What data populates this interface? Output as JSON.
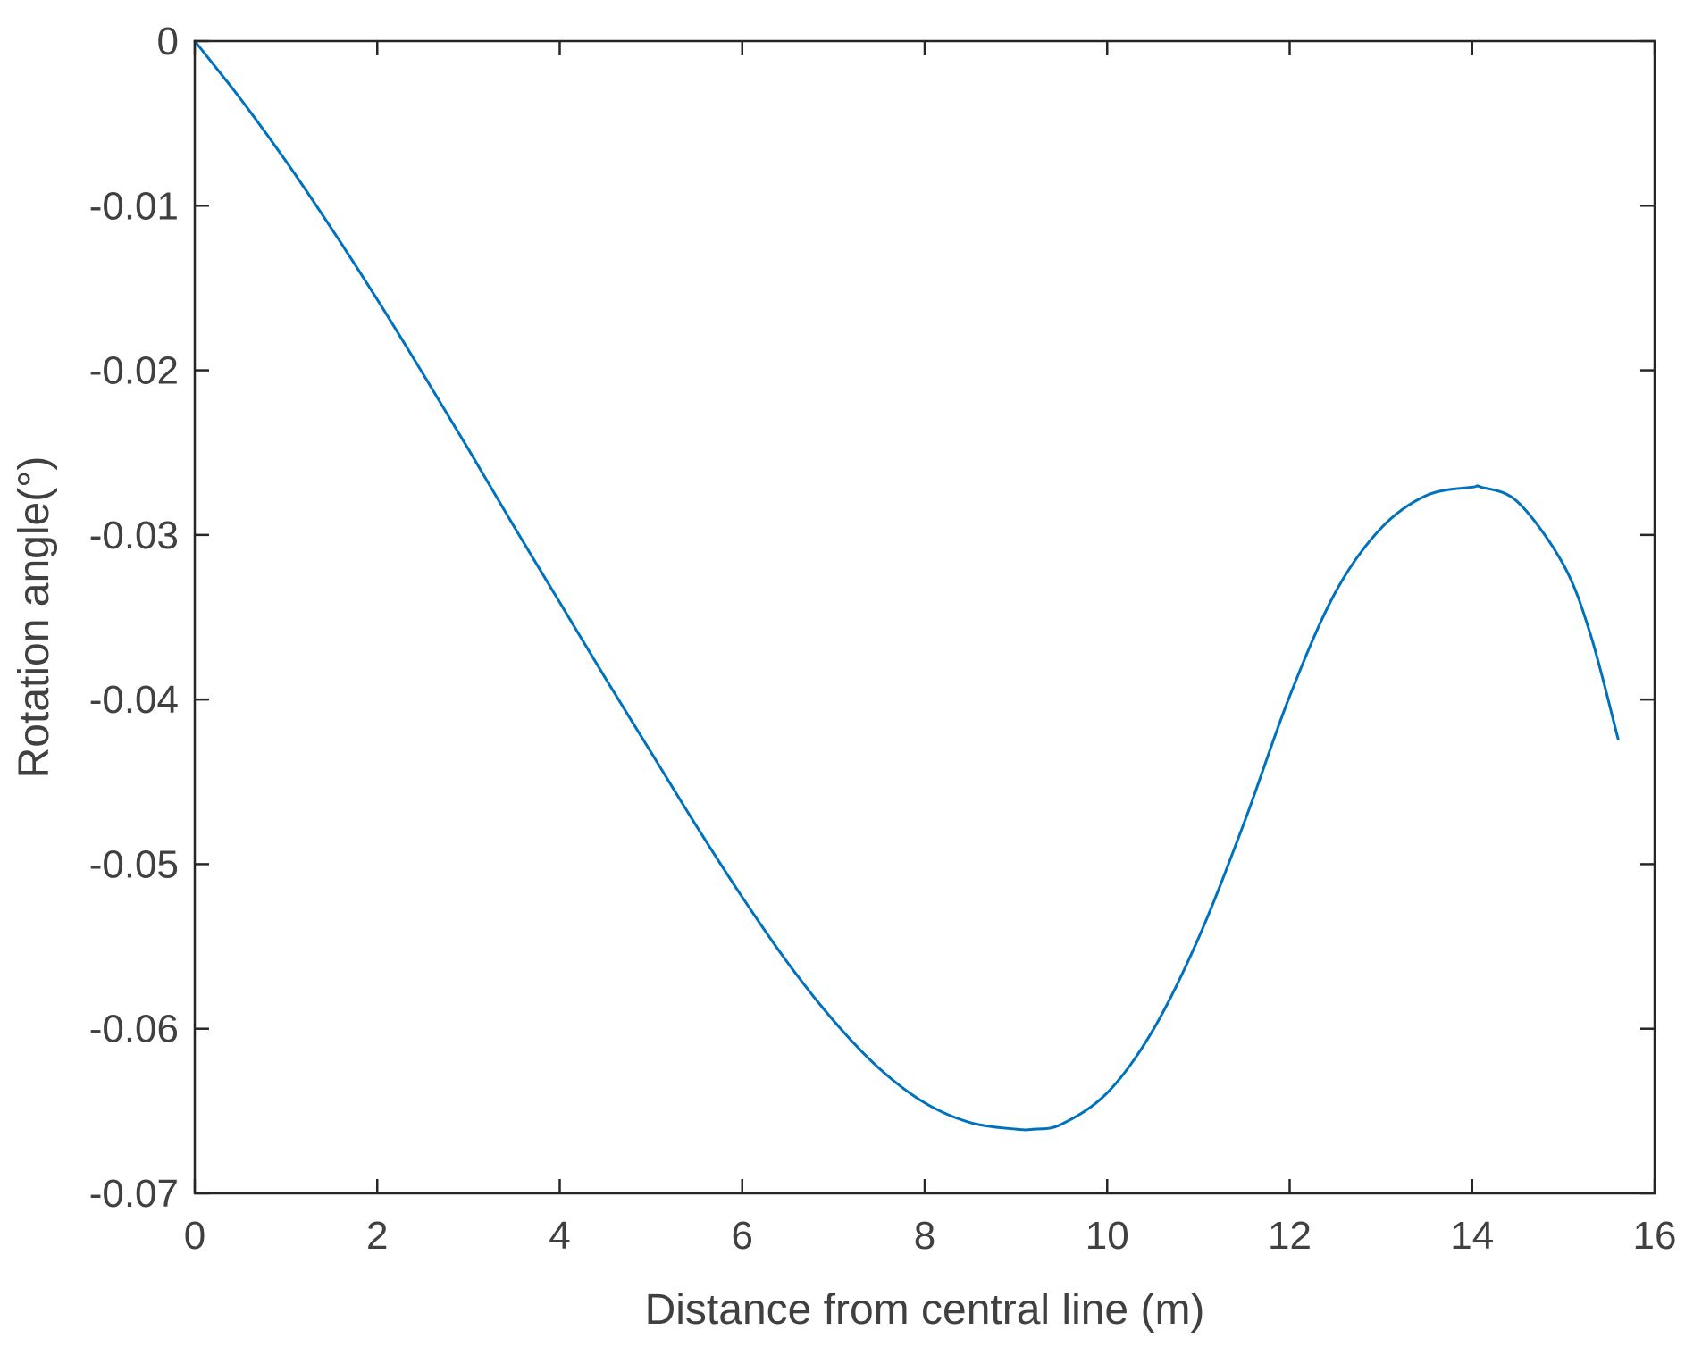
{
  "chart_data": {
    "type": "line",
    "title": "",
    "xlabel": "Distance from central line (m)",
    "ylabel": "Rotation angle(°)",
    "xlim": [
      0,
      16
    ],
    "ylim": [
      -0.07,
      0
    ],
    "x_ticks": [
      0,
      2,
      4,
      6,
      8,
      10,
      12,
      14,
      16
    ],
    "y_ticks": [
      0,
      -0.01,
      -0.02,
      -0.03,
      -0.04,
      -0.05,
      -0.06,
      -0.07
    ],
    "x_tick_labels": [
      "0",
      "2",
      "4",
      "6",
      "8",
      "10",
      "12",
      "14",
      "16"
    ],
    "y_tick_labels": [
      "0",
      "-0.01",
      "-0.02",
      "-0.03",
      "-0.04",
      "-0.05",
      "-0.06",
      "-0.07"
    ],
    "grid": false,
    "series": [
      {
        "color": "#0072BD",
        "x": [
          0,
          0.5,
          1,
          1.5,
          2,
          2.5,
          3,
          3.5,
          4,
          4.5,
          5,
          5.5,
          6,
          6.5,
          7,
          7.5,
          8,
          8.5,
          9,
          9.2,
          9.5,
          10,
          10.5,
          11,
          11.5,
          12,
          12.5,
          13,
          13.5,
          14,
          14.1,
          14.5,
          15,
          15.3,
          15.6
        ],
        "y": [
          0,
          -0.0035,
          -0.0073,
          -0.0114,
          -0.0157,
          -0.0202,
          -0.0248,
          -0.0295,
          -0.0341,
          -0.0387,
          -0.0432,
          -0.0477,
          -0.052,
          -0.056,
          -0.0595,
          -0.0624,
          -0.0645,
          -0.0657,
          -0.0661,
          -0.0661,
          -0.0658,
          -0.0639,
          -0.0601,
          -0.0545,
          -0.0475,
          -0.0398,
          -0.0335,
          -0.0296,
          -0.0276,
          -0.0271,
          -0.0271,
          -0.028,
          -0.0318,
          -0.0361,
          -0.0424
        ]
      }
    ],
    "colors": {
      "axis": "#262626",
      "text": "#404040",
      "line": "#0072BD"
    }
  }
}
